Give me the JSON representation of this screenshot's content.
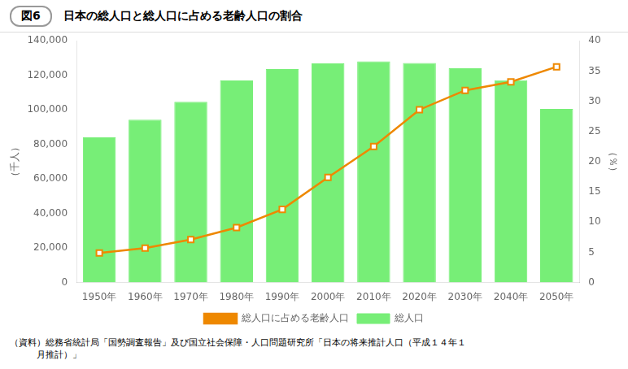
{
  "chart_data": {
    "type": "bar",
    "title": "日本の総人口と総人口に占める老齢人口の割合",
    "annotations": [
      "図6",
      "（資料）総務省統計局「国勢調査報告」及び国立社会保障・人口問題研究所「日本の将来推計人口（平成１４年１\n　　　月推計）」"
    ],
    "categories": [
      "1950年",
      "1960年",
      "1970年",
      "1980年",
      "1990年",
      "2000年",
      "2010年",
      "2020年",
      "2030年",
      "2040年",
      "2050年"
    ],
    "series": [
      {
        "name": "総人口",
        "type": "bar",
        "color": "#77ee77",
        "values": [
          84115,
          94302,
          104665,
          117060,
          123611,
          126926,
          128057,
          127116,
          124100,
          117116,
          100496
        ]
      },
      {
        "name": "総人口に占める老齢人口",
        "type": "line",
        "color": "#ee8800",
        "marker": "square",
        "axis": "y2",
        "values": [
          4.9,
          5.7,
          7.1,
          9.1,
          12.1,
          17.4,
          22.5,
          28.6,
          31.8,
          33.2,
          35.7
        ]
      }
    ],
    "ylabel": "（千人）",
    "y2label": "（％）",
    "ylim": [
      0,
      140000
    ],
    "yticks": [
      0,
      {
        "value": 20000,
        "label": "20,000"
      },
      {
        "value": 40000,
        "label": "40,000"
      },
      {
        "value": 60000,
        "label": "60,000"
      },
      {
        "value": 80000,
        "label": "80,000"
      },
      {
        "value": 100000,
        "label": "100,000"
      },
      {
        "value": 120000,
        "label": "120,000"
      },
      {
        "value": 140000,
        "label": "140,000"
      }
    ],
    "y2lim": [
      0,
      40
    ],
    "y2ticks": [
      0,
      5,
      10,
      15,
      20,
      25,
      30,
      35,
      40
    ],
    "grid": false,
    "legend": "bottom"
  }
}
